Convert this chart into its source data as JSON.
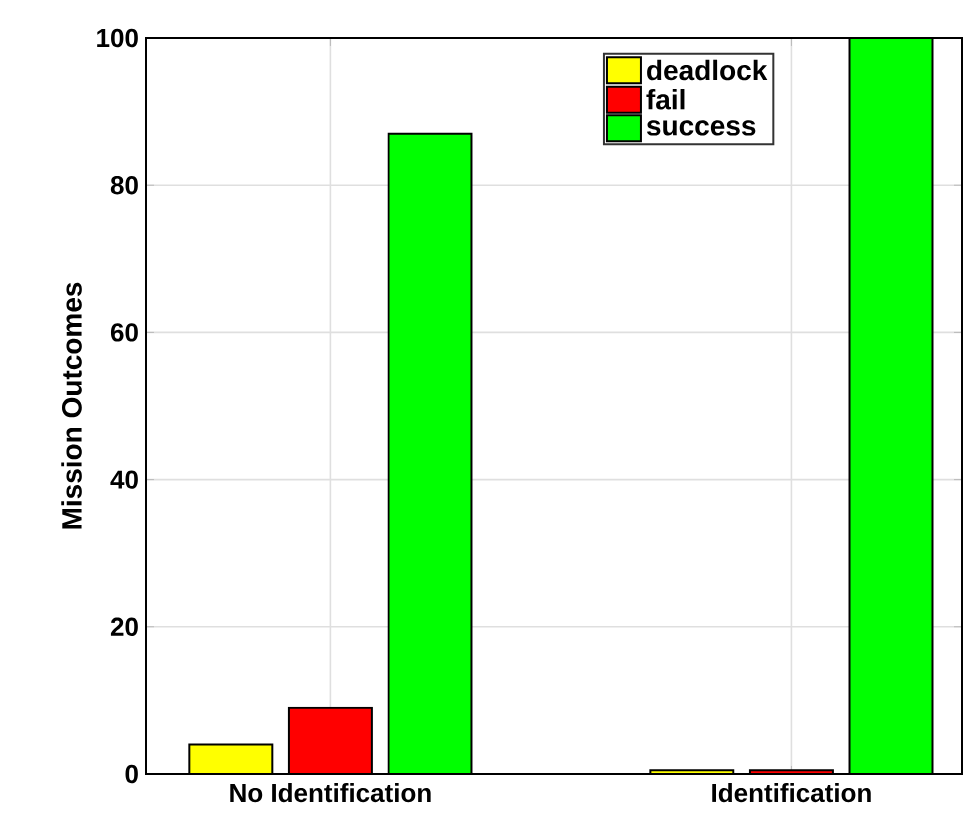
{
  "chart_data": {
    "type": "bar",
    "ylabel": "Mission Outcomes",
    "categories": [
      "No Identification",
      "Identification"
    ],
    "series": [
      {
        "name": "deadlock",
        "color": "#ffff00",
        "values": [
          4,
          0.5
        ]
      },
      {
        "name": "fail",
        "color": "#ff0000",
        "values": [
          9,
          0.5
        ]
      },
      {
        "name": "success",
        "color": "#00ff00",
        "values": [
          87,
          100
        ]
      }
    ],
    "ylim": [
      0,
      100
    ],
    "yticks": [
      0,
      20,
      40,
      60,
      80,
      100
    ],
    "grid": true,
    "legend": "top right"
  }
}
